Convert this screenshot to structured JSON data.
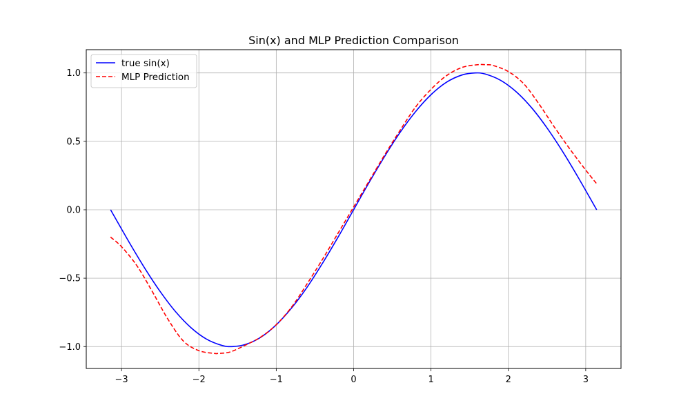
{
  "chart_data": {
    "type": "line",
    "title": "Sin(x) and MLP Prediction Comparison",
    "xlabel": "",
    "ylabel": "",
    "xlim": [
      -3.456,
      3.456
    ],
    "ylim": [
      -1.16,
      1.17
    ],
    "xticks": [
      -3,
      -2,
      -1,
      0,
      1,
      2,
      3
    ],
    "xtick_labels": [
      "−3",
      "−2",
      "−1",
      "0",
      "1",
      "2",
      "3"
    ],
    "yticks": [
      -1.0,
      -0.5,
      0.0,
      0.5,
      1.0
    ],
    "ytick_labels": [
      "−1.0",
      "−0.5",
      "0.0",
      "0.5",
      "1.0"
    ],
    "grid": true,
    "legend_position": "upper-left",
    "series": [
      {
        "name": "true sin(x)",
        "color": "#0000ff",
        "style": "solid",
        "x": [
          -3.1416,
          -2.9,
          -2.7,
          -2.5,
          -2.3,
          -2.1,
          -1.9,
          -1.7,
          -1.5708,
          -1.4,
          -1.2,
          -1.0,
          -0.8,
          -0.6,
          -0.4,
          -0.2,
          0.0,
          0.2,
          0.4,
          0.6,
          0.8,
          1.0,
          1.2,
          1.4,
          1.5708,
          1.7,
          1.9,
          2.1,
          2.3,
          2.5,
          2.7,
          2.9,
          3.1416
        ],
        "y": [
          0.0,
          -0.239,
          -0.427,
          -0.598,
          -0.746,
          -0.863,
          -0.946,
          -0.992,
          -1.0,
          -0.985,
          -0.932,
          -0.841,
          -0.717,
          -0.565,
          -0.389,
          -0.199,
          0.0,
          0.199,
          0.389,
          0.565,
          0.717,
          0.841,
          0.932,
          0.985,
          1.0,
          0.992,
          0.946,
          0.863,
          0.746,
          0.598,
          0.427,
          0.239,
          0.0
        ]
      },
      {
        "name": "MLP Prediction",
        "color": "#ff0000",
        "style": "dashed",
        "x": [
          -3.1416,
          -3.0,
          -2.8,
          -2.6,
          -2.4,
          -2.2,
          -2.0,
          -1.8,
          -1.75,
          -1.6,
          -1.4,
          -1.2,
          -1.0,
          -0.8,
          -0.6,
          -0.4,
          -0.2,
          0.0,
          0.2,
          0.4,
          0.6,
          0.8,
          1.0,
          1.2,
          1.4,
          1.6,
          1.72,
          1.8,
          2.0,
          2.2,
          2.4,
          2.6,
          2.8,
          3.0,
          3.1416
        ],
        "y": [
          -0.2,
          -0.27,
          -0.41,
          -0.6,
          -0.8,
          -0.96,
          -1.03,
          -1.05,
          -1.05,
          -1.04,
          -0.99,
          -0.93,
          -0.84,
          -0.71,
          -0.54,
          -0.36,
          -0.17,
          0.02,
          0.21,
          0.4,
          0.58,
          0.75,
          0.88,
          0.98,
          1.04,
          1.06,
          1.06,
          1.055,
          1.01,
          0.92,
          0.77,
          0.6,
          0.44,
          0.29,
          0.19
        ]
      }
    ]
  }
}
